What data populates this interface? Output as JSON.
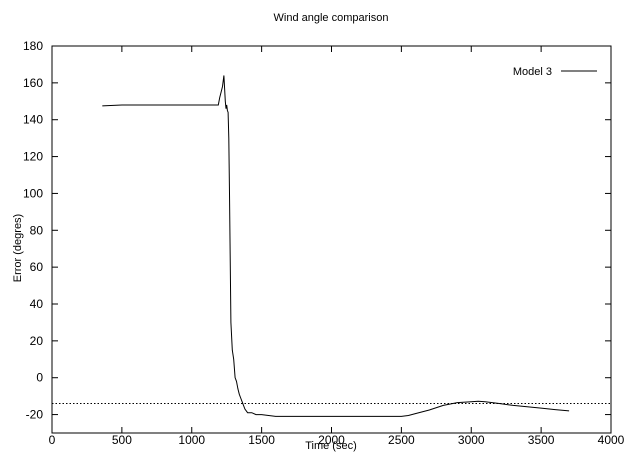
{
  "chart_data": {
    "type": "line",
    "title": "Wind angle comparison",
    "xlabel": "Time (sec)",
    "ylabel": "Error (degres)",
    "xlim": [
      0,
      4000
    ],
    "ylim": [
      -30,
      180
    ],
    "x_ticks": [
      0,
      500,
      1000,
      1500,
      2000,
      2500,
      3000,
      3500,
      4000
    ],
    "y_ticks": [
      -20,
      0,
      20,
      40,
      60,
      80,
      100,
      120,
      140,
      160,
      180
    ],
    "x_tick_labels": [
      "0",
      "500",
      "1000",
      "1500",
      "2000",
      "2500",
      "3000",
      "3500",
      "4000"
    ],
    "y_tick_labels": [
      "-20",
      "0",
      "20",
      "40",
      "60",
      "80",
      "100",
      "120",
      "140",
      "160",
      "180"
    ],
    "grid": false,
    "legend_position": "top-right",
    "series": [
      {
        "name": "Model 3",
        "style": "solid",
        "color": "#000000",
        "x": [
          360,
          500,
          700,
          900,
          1100,
          1190,
          1200,
          1210,
          1220,
          1230,
          1235,
          1240,
          1245,
          1250,
          1255,
          1260,
          1265,
          1270,
          1280,
          1290,
          1300,
          1310,
          1320,
          1330,
          1340,
          1350,
          1360,
          1380,
          1400,
          1430,
          1460,
          1500,
          1600,
          1700,
          1800,
          2000,
          2200,
          2400,
          2500,
          2550,
          2600,
          2700,
          2800,
          2900,
          3000,
          3050,
          3100,
          3200,
          3300,
          3400,
          3500,
          3600,
          3700
        ],
        "y": [
          147.5,
          148,
          148,
          148,
          148,
          148,
          152,
          155,
          158,
          164,
          157,
          150,
          146,
          148,
          145,
          144,
          130,
          100,
          30,
          15,
          10,
          0,
          -2,
          -6,
          -9,
          -11,
          -13,
          -17,
          -19,
          -19,
          -20,
          -20,
          -21,
          -21,
          -21,
          -21,
          -21,
          -21,
          -21,
          -20.5,
          -19.5,
          -17.5,
          -15,
          -13.5,
          -13,
          -12.8,
          -13,
          -14,
          -15,
          -15.8,
          -16.5,
          -17.3,
          -18
        ]
      },
      {
        "name": "",
        "style": "dotted",
        "color": "#000000",
        "x": [
          0,
          4000
        ],
        "y": [
          -14,
          -14
        ]
      }
    ]
  }
}
